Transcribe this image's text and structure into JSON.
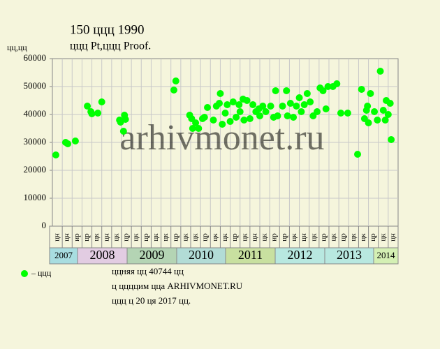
{
  "chart_data": {
    "type": "scatter",
    "title": "150 ццц 1990",
    "subtitle": "ццц Pt,ццц Proof.",
    "y_label": "цц,цц",
    "watermark": "arhivmonet.ru",
    "categories": [
      "цн",
      "цн",
      "ир",
      "цр",
      "цк",
      "цн",
      "цк",
      "цр",
      "цк",
      "цр",
      "цк",
      "цк",
      "цр",
      "цк",
      "цк",
      "цр",
      "цк",
      "цк",
      "цр",
      "цк",
      "цн",
      "цк",
      "ир",
      "цр",
      "цк",
      "цн",
      "цк",
      "цр",
      "цк",
      "цр",
      "цк",
      "цк",
      "цр",
      "цк",
      "цн"
    ],
    "years": [
      "2007",
      "2008",
      "2009",
      "2010",
      "2011",
      "2012",
      "2013",
      "2014"
    ],
    "year_colors": [
      "#a8dde0",
      "#e2cce2",
      "#b4d4b4",
      "#b2dcd6",
      "#c8e0a0",
      "#b8e8e0",
      "#b8e8e0",
      "#d4f0b4"
    ],
    "xlim": [
      0,
      35
    ],
    "ylim": [
      0,
      60000
    ],
    "yticks": [
      0,
      10000,
      20000,
      30000,
      40000,
      50000,
      60000
    ],
    "grid": true,
    "series": [
      {
        "name": "– ццц",
        "color": "#00ff00",
        "x": [
          0.35,
          1.34,
          1.56,
          2.33,
          3.54,
          3.9,
          4.0,
          4.6,
          5.0,
          6.8,
          6.9,
          7.3,
          7.2,
          7.4,
          12.3,
          12.5,
          13.9,
          14.1,
          14.2,
          14.5,
          14.8,
          15.2,
          15.4,
          15.7,
          16.3,
          16.6,
          16.9,
          17.0,
          17.2,
          17.5,
          17.7,
          18.0,
          18.3,
          18.6,
          18.9,
          19.0,
          19.3,
          19.4,
          19.7,
          20.0,
          20.3,
          20.6,
          20.9,
          21.0,
          21.3,
          21.6,
          22.1,
          22.4,
          22.6,
          22.8,
          23.3,
          23.7,
          23.8,
          24.1,
          24.4,
          24.7,
          25.0,
          25.2,
          25.5,
          25.8,
          26.1,
          26.4,
          26.8,
          27.1,
          27.4,
          27.7,
          27.9,
          28.4,
          28.8,
          29.2,
          29.9,
          30.9,
          31.3,
          31.6,
          31.8,
          31.9,
          32.0,
          32.2,
          32.6,
          32.9,
          33.2,
          33.5,
          33.7,
          33.8,
          34.0,
          34.2,
          34.3
        ],
        "values": [
          25500,
          30000,
          29500,
          30500,
          43000,
          41000,
          40250,
          40500,
          44500,
          38000,
          37250,
          39750,
          34000,
          38250,
          48750,
          52000,
          39750,
          38500,
          35000,
          37000,
          35000,
          38500,
          39000,
          42500,
          38000,
          43000,
          44000,
          47500,
          36500,
          40500,
          43500,
          37500,
          44500,
          39000,
          43500,
          41000,
          45500,
          38000,
          45000,
          38500,
          43500,
          41000,
          42000,
          39500,
          43000,
          41000,
          43000,
          39000,
          48500,
          39500,
          43000,
          48500,
          39500,
          44000,
          39000,
          43000,
          46000,
          41000,
          43500,
          47500,
          44500,
          39500,
          41000,
          49500,
          48500,
          42000,
          50000,
          50000,
          51000,
          40500,
          40500,
          25750,
          49000,
          38500,
          41500,
          43000,
          37000,
          47500,
          41000,
          38000,
          55500,
          41500,
          38000,
          45000,
          40000,
          44000,
          31000
        ]
      }
    ],
    "notes": [
      "ццняя цц 40744 цц",
      "ц ццццим цца ARHIVMONET.RU",
      "ццц ц 20 ця 2017 цц."
    ]
  }
}
